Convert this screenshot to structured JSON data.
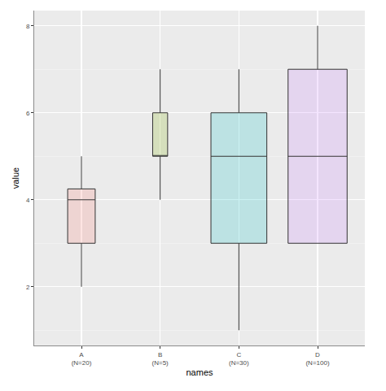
{
  "chart_data": {
    "type": "box",
    "x_label": "names",
    "y_label": "value",
    "categories": [
      "A\n(N=20)",
      "B\n(N=5)",
      "C\n(N=30)",
      "D\n(N=100)"
    ],
    "min": [
      2,
      4,
      1,
      3
    ],
    "q1": [
      3,
      5,
      3,
      3
    ],
    "median": [
      4,
      5,
      5,
      5
    ],
    "q3": [
      4.25,
      6,
      6,
      7
    ],
    "max": [
      5,
      7,
      7,
      8
    ],
    "colors": [
      "#F8766D",
      "#7CAE00",
      "#00BFC4",
      "#C77CFF"
    ],
    "ylim": [
      0.65,
      8.35
    ],
    "yticks": [
      2,
      4,
      6,
      8
    ],
    "grid": true
  }
}
